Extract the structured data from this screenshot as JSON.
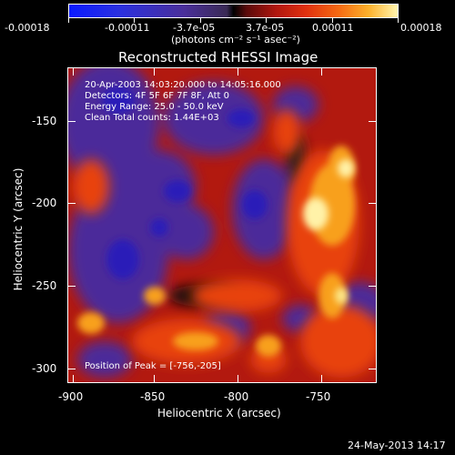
{
  "colorbar": {
    "tick_labels": [
      "-0.00018",
      "-0.00011",
      "-3.7e-05",
      "3.7e-05",
      "0.00011",
      "0.00018"
    ],
    "units_label": "(photons cm⁻² s⁻¹ asec⁻²)"
  },
  "plot": {
    "title": "Reconstructed RHESSI Image",
    "info_lines": [
      "20-Apr-2003 14:03:20.000 to 14:05:16.000",
      "Detectors: 4F 5F 6F 7F 8F, Att 0",
      "Energy Range: 25.0 - 50.0 keV",
      "Clean    Total counts: 1.44E+03"
    ],
    "peak_label": "Position of Peak = [-756,-205]",
    "xlabel": "Heliocentric X (arcsec)",
    "ylabel": "Heliocentric Y (arcsec)",
    "x_ticks": [
      "-900",
      "-850",
      "-800",
      "-750"
    ],
    "y_ticks": [
      "-150",
      "-200",
      "-250",
      "-300"
    ],
    "colors": {
      "negative_deep": "#1e1aa8",
      "negative": "#4b2a9a",
      "zero": "#000000",
      "low": "#a0140e",
      "mid": "#e8380c",
      "high": "#f89a1a",
      "peak": "#fff2a8"
    }
  },
  "footer": {
    "timestamp": "24-May-2013 14:17"
  }
}
